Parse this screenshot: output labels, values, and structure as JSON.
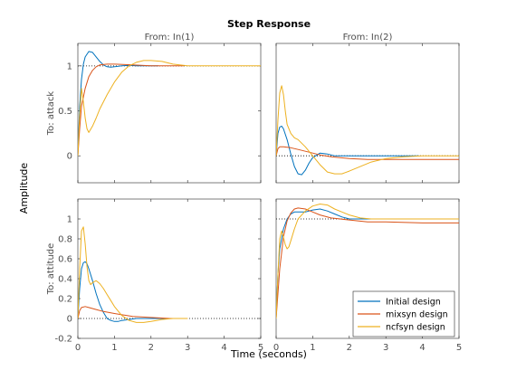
{
  "figure": {
    "title": "Step Response",
    "xlabel": "Time (seconds)",
    "ylabel": "Amplitude"
  },
  "chart_data": {
    "type": "line",
    "title": "Step Response",
    "xlabel": "Time (seconds)",
    "ylabel": "Amplitude",
    "columns": [
      "From: In(1)",
      "From: In(2)"
    ],
    "rows": [
      "To: attack",
      "To: attitude"
    ],
    "xlim": [
      0,
      5
    ],
    "xticks": [
      "0",
      "1",
      "2",
      "3",
      "4",
      "5"
    ],
    "grid": false,
    "legend_position": "bottom-right",
    "legend": [
      "Initial design",
      "mixsyn design",
      "ncfsyn design"
    ],
    "colors": [
      "#0072BD",
      "#D95319",
      "#EDB120"
    ],
    "panels": [
      {
        "row": "To: attack",
        "column": "From: In(1)",
        "ylim": [
          -0.3,
          1.25
        ],
        "yticks": [
          "0",
          "0.5",
          "1"
        ],
        "steady_state": 1,
        "series": [
          {
            "name": "Initial design",
            "x": [
              0,
              0.05,
              0.1,
              0.15,
              0.2,
              0.3,
              0.4,
              0.5,
              0.6,
              0.7,
              0.8,
              0.9,
              1.0,
              1.2,
              1.4,
              1.6,
              2.0,
              2.2
            ],
            "y": [
              0,
              0.55,
              0.85,
              1.02,
              1.1,
              1.16,
              1.15,
              1.1,
              1.05,
              1.01,
              0.99,
              0.985,
              0.99,
              1.0,
              1.005,
              1.0,
              1.0,
              1.0
            ]
          },
          {
            "name": "mixsyn design",
            "x": [
              0,
              0.05,
              0.1,
              0.2,
              0.3,
              0.4,
              0.5,
              0.6,
              0.8,
              1.0,
              1.5,
              2.0,
              2.5,
              2.9
            ],
            "y": [
              0,
              0.3,
              0.55,
              0.75,
              0.88,
              0.95,
              0.99,
              1.01,
              1.02,
              1.02,
              1.01,
              1.0,
              1.0,
              1.0
            ]
          },
          {
            "name": "ncfsyn design",
            "x": [
              0,
              0.05,
              0.1,
              0.15,
              0.2,
              0.25,
              0.3,
              0.4,
              0.5,
              0.6,
              0.8,
              1.0,
              1.2,
              1.4,
              1.6,
              1.8,
              2.0,
              2.3,
              2.6,
              3.0,
              3.5,
              5.0
            ],
            "y": [
              0,
              0.45,
              0.75,
              0.6,
              0.42,
              0.3,
              0.26,
              0.33,
              0.42,
              0.52,
              0.68,
              0.82,
              0.93,
              1.0,
              1.04,
              1.06,
              1.06,
              1.05,
              1.02,
              1.0,
              1.0,
              1.0
            ]
          }
        ]
      },
      {
        "row": "To: attack",
        "column": "From: In(2)",
        "ylim": [
          -0.3,
          1.25
        ],
        "yticks": [],
        "steady_state": 0,
        "series": [
          {
            "name": "Initial design",
            "x": [
              0,
              0.05,
              0.1,
              0.15,
              0.2,
              0.3,
              0.4,
              0.5,
              0.6,
              0.7,
              0.8,
              0.9,
              1.0,
              1.2,
              1.4,
              1.6,
              2.0,
              2.5,
              3.0,
              3.5,
              3.9
            ],
            "y": [
              0,
              0.25,
              0.32,
              0.33,
              0.3,
              0.18,
              0.02,
              -0.12,
              -0.2,
              -0.21,
              -0.16,
              -0.08,
              -0.02,
              0.03,
              0.02,
              0.0,
              0.0,
              0.0,
              0.0,
              0.0,
              0.0
            ]
          },
          {
            "name": "mixsyn design",
            "x": [
              0,
              0.05,
              0.1,
              0.2,
              0.4,
              0.6,
              0.8,
              1.0,
              1.2,
              1.5,
              2.0,
              2.5,
              3.0,
              4.0,
              5.0
            ],
            "y": [
              0,
              0.08,
              0.1,
              0.1,
              0.09,
              0.07,
              0.05,
              0.03,
              0.01,
              -0.01,
              -0.03,
              -0.04,
              -0.04,
              -0.04,
              -0.04
            ]
          },
          {
            "name": "ncfsyn design",
            "x": [
              0,
              0.05,
              0.1,
              0.15,
              0.2,
              0.25,
              0.3,
              0.4,
              0.5,
              0.6,
              0.8,
              1.0,
              1.2,
              1.4,
              1.6,
              1.8,
              2.0,
              2.3,
              2.6,
              3.0,
              3.5,
              4.0,
              5.0
            ],
            "y": [
              0,
              0.4,
              0.7,
              0.78,
              0.68,
              0.5,
              0.35,
              0.25,
              0.2,
              0.18,
              0.1,
              0.0,
              -0.1,
              -0.18,
              -0.2,
              -0.2,
              -0.17,
              -0.12,
              -0.07,
              -0.03,
              -0.01,
              0.0,
              0.0
            ]
          }
        ]
      },
      {
        "row": "To: attitude",
        "column": "From: In(1)",
        "ylim": [
          -0.2,
          1.2
        ],
        "yticks": [
          "-0.2",
          "0",
          "0.2",
          "0.4",
          "0.6",
          "0.8",
          "1"
        ],
        "steady_state": 0,
        "series": [
          {
            "name": "Initial design",
            "x": [
              0,
              0.05,
              0.1,
              0.15,
              0.2,
              0.25,
              0.3,
              0.4,
              0.5,
              0.6,
              0.7,
              0.8,
              0.9,
              1.0,
              1.1,
              1.2,
              1.4,
              1.6,
              2.0,
              2.5
            ],
            "y": [
              0,
              0.3,
              0.5,
              0.56,
              0.57,
              0.55,
              0.5,
              0.38,
              0.25,
              0.14,
              0.06,
              0.0,
              -0.02,
              -0.03,
              -0.03,
              -0.02,
              -0.01,
              0.0,
              0.0,
              0.0
            ]
          },
          {
            "name": "mixsyn design",
            "x": [
              0,
              0.05,
              0.1,
              0.2,
              0.3,
              0.5,
              0.7,
              1.0,
              1.5,
              2.0,
              2.5,
              3.0
            ],
            "y": [
              0,
              0.08,
              0.11,
              0.12,
              0.11,
              0.09,
              0.07,
              0.05,
              0.02,
              0.01,
              0.0,
              0.0
            ]
          },
          {
            "name": "ncfsyn design",
            "x": [
              0,
              0.05,
              0.1,
              0.15,
              0.2,
              0.25,
              0.3,
              0.35,
              0.4,
              0.5,
              0.6,
              0.7,
              0.8,
              0.9,
              1.0,
              1.2,
              1.4,
              1.6,
              1.8,
              2.0,
              2.3,
              2.6,
              3.0
            ],
            "y": [
              0,
              0.5,
              0.88,
              0.92,
              0.75,
              0.52,
              0.38,
              0.34,
              0.36,
              0.38,
              0.35,
              0.3,
              0.24,
              0.18,
              0.12,
              0.03,
              -0.02,
              -0.04,
              -0.04,
              -0.03,
              -0.01,
              0.0,
              0.0
            ]
          }
        ]
      },
      {
        "row": "To: attitude",
        "column": "From: In(2)",
        "ylim": [
          -0.2,
          1.2
        ],
        "yticks": [],
        "steady_state": 1,
        "series": [
          {
            "name": "Initial design",
            "x": [
              0,
              0.05,
              0.1,
              0.2,
              0.3,
              0.4,
              0.5,
              0.6,
              0.8,
              1.0,
              1.2,
              1.4,
              1.6,
              1.8,
              2.0,
              2.3,
              2.6,
              3.0,
              3.5,
              3.9
            ],
            "y": [
              0,
              0.45,
              0.7,
              0.9,
              1.0,
              1.05,
              1.07,
              1.07,
              1.07,
              1.09,
              1.1,
              1.08,
              1.05,
              1.02,
              1.0,
              1.0,
              1.0,
              1.0,
              1.0,
              1.0
            ]
          },
          {
            "name": "mixsyn design",
            "x": [
              0,
              0.05,
              0.1,
              0.2,
              0.3,
              0.4,
              0.5,
              0.6,
              0.8,
              1.0,
              1.2,
              1.5,
              2.0,
              2.5,
              3.0,
              4.0,
              5.0
            ],
            "y": [
              0,
              0.25,
              0.5,
              0.82,
              0.98,
              1.06,
              1.1,
              1.11,
              1.1,
              1.07,
              1.04,
              1.01,
              0.99,
              0.97,
              0.97,
              0.96,
              0.96
            ]
          },
          {
            "name": "ncfsyn design",
            "x": [
              0,
              0.05,
              0.1,
              0.15,
              0.2,
              0.25,
              0.3,
              0.35,
              0.4,
              0.5,
              0.6,
              0.8,
              1.0,
              1.2,
              1.4,
              1.6,
              1.8,
              2.0,
              2.3,
              2.6,
              3.0,
              5.0
            ],
            "y": [
              0,
              0.45,
              0.8,
              0.88,
              0.82,
              0.74,
              0.7,
              0.72,
              0.78,
              0.9,
              1.0,
              1.08,
              1.13,
              1.15,
              1.14,
              1.1,
              1.07,
              1.04,
              1.01,
              1.0,
              1.0,
              1.0
            ]
          }
        ]
      }
    ]
  }
}
